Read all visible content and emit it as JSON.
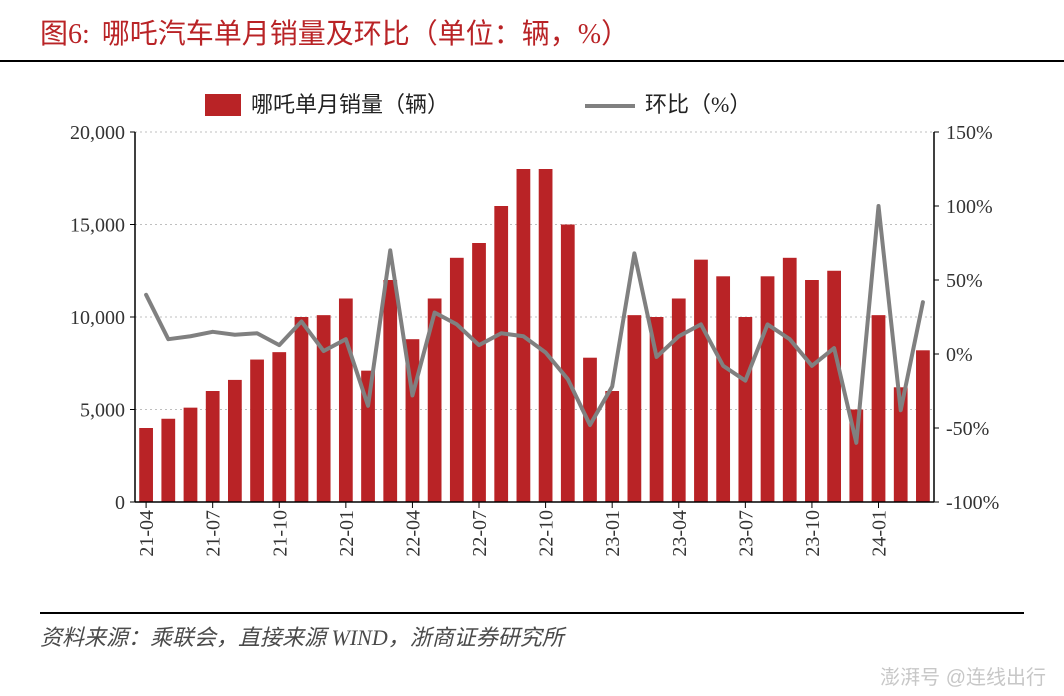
{
  "title": {
    "prefix": "图6:",
    "text": "哪吒汽车单月销量及环比（单位：辆，%）"
  },
  "legend": {
    "series1": "哪吒单月销量（辆）",
    "series2": "环比（%）"
  },
  "source": "资料来源：乘联会，直接来源 WIND，浙商证券研究所",
  "watermark": "澎湃号 @连线出行",
  "chart": {
    "type": "bar+line",
    "background_color": "#ffffff",
    "bar_color": "#b92326",
    "line_color": "#808080",
    "line_width": 4,
    "grid_color": "#bfbfbf",
    "axis_color": "#000000",
    "tick_font_size": 20,
    "y_left": {
      "min": 0,
      "max": 20000,
      "ticks": [
        0,
        5000,
        10000,
        15000,
        20000
      ]
    },
    "y_right": {
      "min": -100,
      "max": 150,
      "ticks": [
        -100,
        -50,
        0,
        50,
        100,
        150
      ],
      "suffix": "%"
    },
    "x_labels_shown": [
      "21-04",
      "21-07",
      "21-10",
      "22-01",
      "22-04",
      "22-07",
      "22-10",
      "23-01",
      "23-04",
      "23-07",
      "23-10",
      "24-01"
    ],
    "categories": [
      "21-04",
      "21-05",
      "21-06",
      "21-07",
      "21-08",
      "21-09",
      "21-10",
      "21-11",
      "21-12",
      "22-01",
      "22-02",
      "22-03",
      "22-04",
      "22-05",
      "22-06",
      "22-07",
      "22-08",
      "22-09",
      "22-10",
      "22-11",
      "22-12",
      "23-01",
      "23-02",
      "23-03",
      "23-04",
      "23-05",
      "23-06",
      "23-07",
      "23-08",
      "23-09",
      "23-10",
      "23-11",
      "23-12",
      "24-01",
      "24-02",
      "24-03"
    ],
    "bar_values": [
      4000,
      4500,
      5100,
      6000,
      6600,
      7700,
      8100,
      10000,
      10100,
      11000,
      7100,
      12000,
      8800,
      11000,
      13200,
      14000,
      16000,
      18000,
      18000,
      15000,
      7800,
      6000,
      10100,
      10000,
      11000,
      13100,
      12200,
      10000,
      12200,
      13200,
      12000,
      12500,
      5000,
      10100,
      6200,
      8200
    ],
    "line_values": [
      40,
      10,
      12,
      15,
      13,
      14,
      6,
      22,
      2,
      10,
      -35,
      70,
      -28,
      28,
      20,
      6,
      14,
      12,
      1,
      -17,
      -48,
      -22,
      68,
      -2,
      12,
      20,
      -8,
      -18,
      20,
      10,
      -8,
      4,
      -60,
      100,
      -38,
      35
    ]
  }
}
